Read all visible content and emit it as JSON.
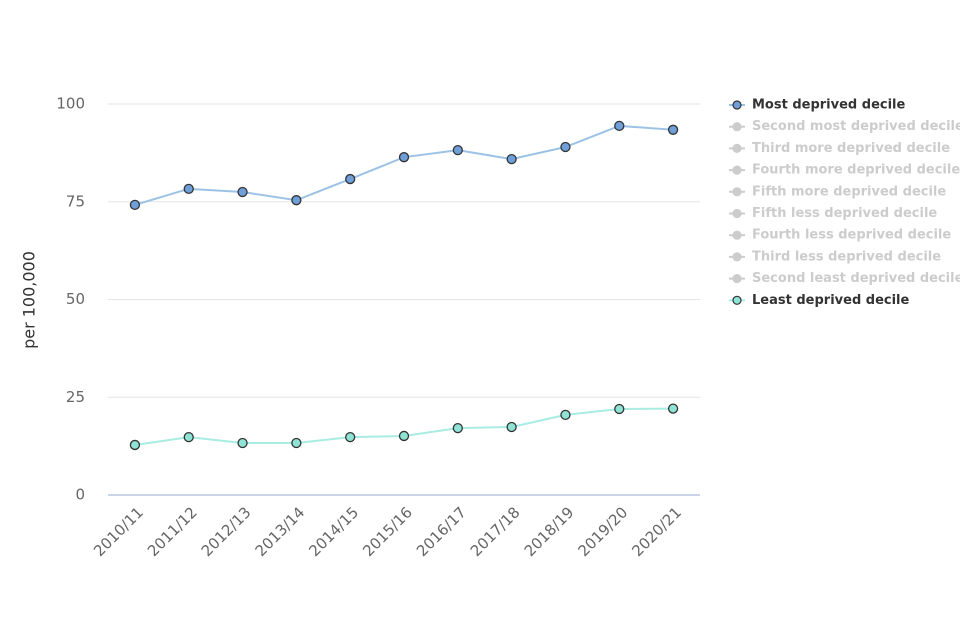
{
  "chart_data": {
    "type": "line",
    "y_label": "per 100,000",
    "categories": [
      "2010/11",
      "2011/12",
      "2012/13",
      "2013/14",
      "2014/15",
      "2015/16",
      "2016/17",
      "2017/18",
      "2018/19",
      "2019/20",
      "2020/21"
    ],
    "series": [
      {
        "name": "Most deprived decile",
        "color": "#9cc3e6",
        "marker_color": "#6f9fd8",
        "values": [
          74.2,
          78.3,
          77.5,
          75.4,
          80.8,
          86.4,
          88.2,
          85.9,
          89.0,
          94.4,
          93.4
        ]
      },
      {
        "name": "Second most deprived decile",
        "visible": false
      },
      {
        "name": "Third more deprived decile",
        "visible": false
      },
      {
        "name": "Fourth more deprived decile",
        "visible": false
      },
      {
        "name": "Fifth more deprived decile",
        "visible": false
      },
      {
        "name": "Fifth less deprived decile",
        "visible": false
      },
      {
        "name": "Fourth less deprived decile",
        "visible": false
      },
      {
        "name": "Third less deprived decile",
        "visible": false
      },
      {
        "name": "Second least deprived decile",
        "visible": false
      },
      {
        "name": "Least deprived decile",
        "color": "#a8ece4",
        "marker_color": "#8fe3d4",
        "values": [
          12.8,
          14.8,
          13.3,
          13.3,
          14.8,
          15.1,
          17.1,
          17.4,
          20.5,
          22.0,
          22.1
        ]
      }
    ],
    "hidden_color": "#cccccc",
    "ylim": [
      0,
      100
    ],
    "yticks": [
      0,
      25,
      50,
      75,
      100
    ],
    "grid": true,
    "legend": "right"
  }
}
